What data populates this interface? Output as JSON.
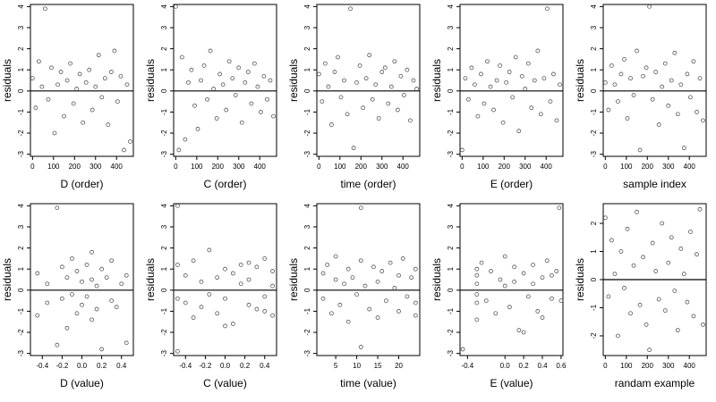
{
  "chart_data": [
    {
      "type": "scatter",
      "xlabel": "D (order)",
      "ylabel": "residuals",
      "xticks": [
        "0",
        "100",
        "200",
        "300",
        "400"
      ],
      "yticks": [
        "-3",
        "-2",
        "-1",
        "0",
        "1",
        "2",
        "3",
        "4"
      ],
      "xlim": [
        -10,
        480
      ],
      "ylim": [
        -3.1,
        4.1
      ],
      "reference_line_y": 0,
      "x": [
        0,
        15,
        30,
        45,
        60,
        75,
        90,
        105,
        120,
        135,
        150,
        165,
        180,
        195,
        210,
        225,
        240,
        255,
        270,
        285,
        300,
        315,
        330,
        345,
        360,
        375,
        390,
        405,
        420,
        435,
        450,
        465
      ],
      "y": [
        0.6,
        -0.8,
        1.4,
        0.2,
        3.9,
        -0.4,
        1.1,
        -2.0,
        0.3,
        0.9,
        -1.2,
        0.5,
        1.3,
        -0.6,
        0.1,
        0.8,
        -1.5,
        0.4,
        1.0,
        -0.9,
        0.2,
        1.7,
        -0.3,
        0.6,
        -1.6,
        0.9,
        1.9,
        -0.5,
        0.7,
        -2.8,
        0.3,
        -2.4
      ]
    },
    {
      "type": "scatter",
      "xlabel": "C (order)",
      "ylabel": "residuals",
      "xticks": [
        "0",
        "100",
        "200",
        "300",
        "400"
      ],
      "yticks": [
        "-3",
        "-2",
        "-1",
        "0",
        "1",
        "2",
        "3",
        "4"
      ],
      "xlim": [
        -10,
        480
      ],
      "ylim": [
        -3.1,
        4.1
      ],
      "reference_line_y": 0,
      "x": [
        0,
        15,
        30,
        45,
        60,
        75,
        90,
        105,
        120,
        135,
        150,
        165,
        180,
        195,
        210,
        225,
        240,
        255,
        270,
        285,
        300,
        315,
        330,
        345,
        360,
        375,
        390,
        405,
        420,
        435,
        450,
        465
      ],
      "y": [
        4.0,
        -2.8,
        1.6,
        -2.3,
        0.4,
        1.0,
        -0.7,
        -1.8,
        0.5,
        1.2,
        -0.4,
        1.9,
        0.1,
        -1.3,
        0.8,
        0.3,
        -0.9,
        1.4,
        0.6,
        -0.2,
        1.1,
        -1.5,
        0.4,
        0.9,
        -0.6,
        1.3,
        0.2,
        -1.0,
        0.7,
        -0.4,
        0.5,
        -1.2
      ]
    },
    {
      "type": "scatter",
      "xlabel": "time (order)",
      "ylabel": "residuals",
      "xticks": [
        "0",
        "100",
        "200",
        "300",
        "400"
      ],
      "yticks": [
        "-3",
        "-2",
        "-1",
        "0",
        "1",
        "2",
        "3",
        "4"
      ],
      "xlim": [
        -10,
        480
      ],
      "ylim": [
        -3.1,
        4.1
      ],
      "reference_line_y": 0,
      "x": [
        0,
        15,
        30,
        45,
        60,
        75,
        90,
        105,
        120,
        135,
        150,
        165,
        180,
        195,
        210,
        225,
        240,
        255,
        270,
        285,
        300,
        315,
        330,
        345,
        360,
        375,
        390,
        405,
        420,
        435,
        450,
        465
      ],
      "y": [
        0.8,
        -0.5,
        1.3,
        0.2,
        -1.6,
        0.9,
        1.6,
        -0.3,
        0.5,
        -1.1,
        3.9,
        -2.7,
        0.4,
        1.2,
        -0.8,
        0.6,
        1.7,
        -0.4,
        0.3,
        -1.3,
        0.9,
        1.1,
        -0.6,
        0.2,
        1.4,
        -0.9,
        0.7,
        -0.2,
        1.0,
        -1.4,
        0.5,
        0.1
      ]
    },
    {
      "type": "scatter",
      "xlabel": "E (order)",
      "ylabel": "residuals",
      "xticks": [
        "0",
        "100",
        "200",
        "300",
        "400"
      ],
      "yticks": [
        "-3",
        "-2",
        "-1",
        "0",
        "1",
        "2",
        "3",
        "4"
      ],
      "xlim": [
        -10,
        480
      ],
      "ylim": [
        -3.1,
        4.1
      ],
      "reference_line_y": 0,
      "x": [
        0,
        15,
        30,
        45,
        60,
        75,
        90,
        105,
        120,
        135,
        150,
        165,
        180,
        195,
        210,
        225,
        240,
        255,
        270,
        285,
        300,
        315,
        330,
        345,
        360,
        375,
        390,
        405,
        420,
        435,
        450,
        465
      ],
      "y": [
        -2.8,
        0.6,
        -0.4,
        1.1,
        0.3,
        -1.2,
        0.8,
        -0.6,
        1.4,
        0.2,
        -0.9,
        0.5,
        1.2,
        -1.5,
        0.4,
        0.9,
        -0.3,
        1.6,
        -1.9,
        0.7,
        0.1,
        1.3,
        -0.8,
        0.5,
        1.9,
        -1.1,
        0.6,
        3.9,
        -0.5,
        0.8,
        -1.4,
        0.3
      ]
    },
    {
      "type": "scatter",
      "xlabel": "sample index",
      "ylabel": "residuals",
      "xticks": [
        "0",
        "100",
        "200",
        "300",
        "400"
      ],
      "yticks": [
        "-3",
        "-2",
        "-1",
        "0",
        "1",
        "2",
        "3",
        "4"
      ],
      "xlim": [
        -10,
        480
      ],
      "ylim": [
        -3.1,
        4.1
      ],
      "reference_line_y": 0,
      "x": [
        0,
        15,
        30,
        45,
        60,
        75,
        90,
        105,
        120,
        135,
        150,
        165,
        180,
        195,
        210,
        225,
        240,
        255,
        270,
        285,
        300,
        315,
        330,
        345,
        360,
        375,
        390,
        405,
        420,
        435,
        450,
        465
      ],
      "y": [
        0.4,
        -0.9,
        1.2,
        0.3,
        -0.5,
        0.8,
        1.5,
        -1.3,
        0.6,
        -0.2,
        1.9,
        -2.8,
        0.7,
        1.1,
        4.0,
        -0.4,
        0.9,
        -1.6,
        0.2,
        1.3,
        -0.7,
        0.5,
        1.8,
        -1.1,
        0.3,
        -2.7,
        0.8,
        -0.3,
        1.4,
        -1.0,
        0.6,
        -1.4
      ]
    },
    {
      "type": "scatter",
      "xlabel": "D (value)",
      "ylabel": "residuals",
      "xticks": [
        "-0.4",
        "-0.2",
        "0.0",
        "0.2",
        "0.4"
      ],
      "yticks": [
        "-3",
        "-2",
        "-1",
        "0",
        "1",
        "2",
        "3",
        "4"
      ],
      "xlim": [
        -0.52,
        0.52
      ],
      "ylim": [
        -3.1,
        4.1
      ],
      "reference_line_y": 0,
      "x": [
        -0.45,
        -0.45,
        -0.35,
        -0.35,
        -0.25,
        -0.25,
        -0.2,
        -0.2,
        -0.15,
        -0.15,
        -0.1,
        -0.1,
        -0.05,
        -0.05,
        0.0,
        0.0,
        0.05,
        0.05,
        0.1,
        0.1,
        0.1,
        0.15,
        0.15,
        0.2,
        0.2,
        0.25,
        0.3,
        0.3,
        0.35,
        0.4,
        0.45,
        0.45
      ],
      "y": [
        0.8,
        -1.2,
        0.3,
        -0.6,
        3.9,
        -2.6,
        1.1,
        -0.4,
        0.6,
        -1.8,
        1.5,
        -0.2,
        0.9,
        -1.1,
        0.4,
        -0.7,
        1.2,
        -0.3,
        0.5,
        1.8,
        -1.4,
        0.2,
        -0.9,
        1.0,
        -2.8,
        0.6,
        -0.5,
        1.4,
        -0.8,
        0.3,
        -2.5,
        0.7
      ]
    },
    {
      "type": "scatter",
      "xlabel": "C (value)",
      "ylabel": "residuals",
      "xticks": [
        "-0.4",
        "-0.2",
        "0.0",
        "0.2",
        "0.4"
      ],
      "yticks": [
        "-3",
        "-2",
        "-1",
        "0",
        "1",
        "2",
        "3",
        "4"
      ],
      "xlim": [
        -0.52,
        0.52
      ],
      "ylim": [
        -3.1,
        4.1
      ],
      "reference_line_y": 0,
      "x": [
        -0.48,
        -0.48,
        -0.48,
        -0.4,
        -0.4,
        -0.32,
        -0.32,
        -0.24,
        -0.24,
        -0.16,
        -0.16,
        -0.08,
        -0.08,
        0.0,
        0.0,
        0.08,
        0.08,
        0.16,
        0.16,
        0.24,
        0.24,
        0.32,
        0.32,
        0.4,
        0.4,
        0.48,
        0.48,
        0.48,
        -0.48,
        0.0,
        0.24,
        0.4
      ],
      "y": [
        4.0,
        -2.9,
        1.2,
        -0.6,
        0.7,
        1.4,
        -1.3,
        0.4,
        -0.8,
        1.9,
        -0.2,
        0.6,
        -1.1,
        1.0,
        -0.4,
        0.8,
        -1.6,
        0.3,
        1.2,
        -0.7,
        0.5,
        1.1,
        -0.9,
        1.5,
        -0.3,
        0.9,
        -1.2,
        0.2,
        -0.4,
        -1.7,
        1.3,
        -1.0
      ]
    },
    {
      "type": "scatter",
      "xlabel": "time (value)",
      "ylabel": "residuals",
      "xticks": [
        "5",
        "10",
        "15",
        "20"
      ],
      "yticks": [
        "-3",
        "-2",
        "-1",
        "0",
        "1",
        "2",
        "3",
        "4"
      ],
      "xlim": [
        0.5,
        25
      ],
      "ylim": [
        -3.1,
        4.1
      ],
      "reference_line_y": 0,
      "x": [
        2,
        2,
        3,
        4,
        5,
        5,
        6,
        7,
        8,
        8,
        9,
        10,
        11,
        11,
        11,
        12,
        13,
        14,
        15,
        15,
        16,
        17,
        18,
        19,
        20,
        20,
        21,
        22,
        23,
        24,
        24,
        24
      ],
      "y": [
        0.8,
        -0.4,
        1.2,
        -1.1,
        0.5,
        1.6,
        -0.7,
        0.3,
        1.0,
        -1.5,
        0.6,
        -0.2,
        3.9,
        -2.7,
        1.4,
        0.2,
        -0.9,
        1.1,
        0.4,
        -1.3,
        0.9,
        -0.5,
        1.3,
        0.1,
        -1.0,
        0.7,
        1.5,
        -0.3,
        0.6,
        -1.2,
        1.0,
        -0.6
      ]
    },
    {
      "type": "scatter",
      "xlabel": "E (value)",
      "ylabel": "residuals",
      "xticks": [
        "-0.4",
        "0.0",
        "0.2",
        "0.4",
        "0.6"
      ],
      "yticks": [
        "-3",
        "-2",
        "-1",
        "0",
        "1",
        "2",
        "3",
        "4"
      ],
      "xlim": [
        -0.48,
        0.62
      ],
      "ylim": [
        -3.1,
        4.1
      ],
      "reference_line_y": 0,
      "x": [
        -0.45,
        -0.3,
        -0.3,
        -0.3,
        -0.3,
        -0.3,
        -0.25,
        -0.2,
        -0.15,
        -0.1,
        -0.05,
        0.0,
        0.05,
        0.1,
        0.15,
        0.2,
        0.25,
        0.3,
        0.35,
        0.4,
        0.45,
        0.5,
        0.55,
        0.58,
        -0.3,
        0.1,
        0.2,
        0.3,
        0.4,
        0.5,
        0.6,
        0.0
      ],
      "y": [
        -2.8,
        1.0,
        -0.6,
        0.3,
        -1.4,
        0.7,
        1.3,
        -0.5,
        0.9,
        -1.1,
        0.5,
        1.6,
        -0.8,
        0.4,
        -1.9,
        0.8,
        -0.3,
        1.2,
        -1.0,
        0.6,
        1.4,
        -0.4,
        0.9,
        3.9,
        -0.2,
        1.1,
        -2.0,
        0.3,
        -1.3,
        0.7,
        -0.5,
        0.2
      ]
    },
    {
      "type": "scatter",
      "xlabel": "randam example",
      "ylabel": "residuals",
      "xticks": [
        "0",
        "100",
        "200",
        "300",
        "400"
      ],
      "yticks": [
        "-2",
        "-1",
        "0",
        "1",
        "2"
      ],
      "xlim": [
        -10,
        480
      ],
      "ylim": [
        -2.7,
        2.7
      ],
      "reference_line_y": 0,
      "x": [
        0,
        15,
        30,
        45,
        60,
        75,
        90,
        105,
        120,
        135,
        150,
        165,
        180,
        195,
        210,
        225,
        240,
        255,
        270,
        285,
        300,
        315,
        330,
        345,
        360,
        375,
        390,
        405,
        420,
        435,
        450,
        465
      ],
      "y": [
        2.2,
        -0.6,
        1.4,
        0.2,
        -2.0,
        1.0,
        -0.3,
        1.8,
        -1.2,
        0.5,
        2.4,
        -0.9,
        0.8,
        -1.6,
        -2.5,
        1.3,
        0.3,
        -0.7,
        2.0,
        -1.1,
        0.6,
        1.5,
        -0.4,
        -1.8,
        1.1,
        0.2,
        -0.8,
        1.7,
        -1.3,
        0.9,
        2.5,
        -1.6
      ]
    }
  ]
}
